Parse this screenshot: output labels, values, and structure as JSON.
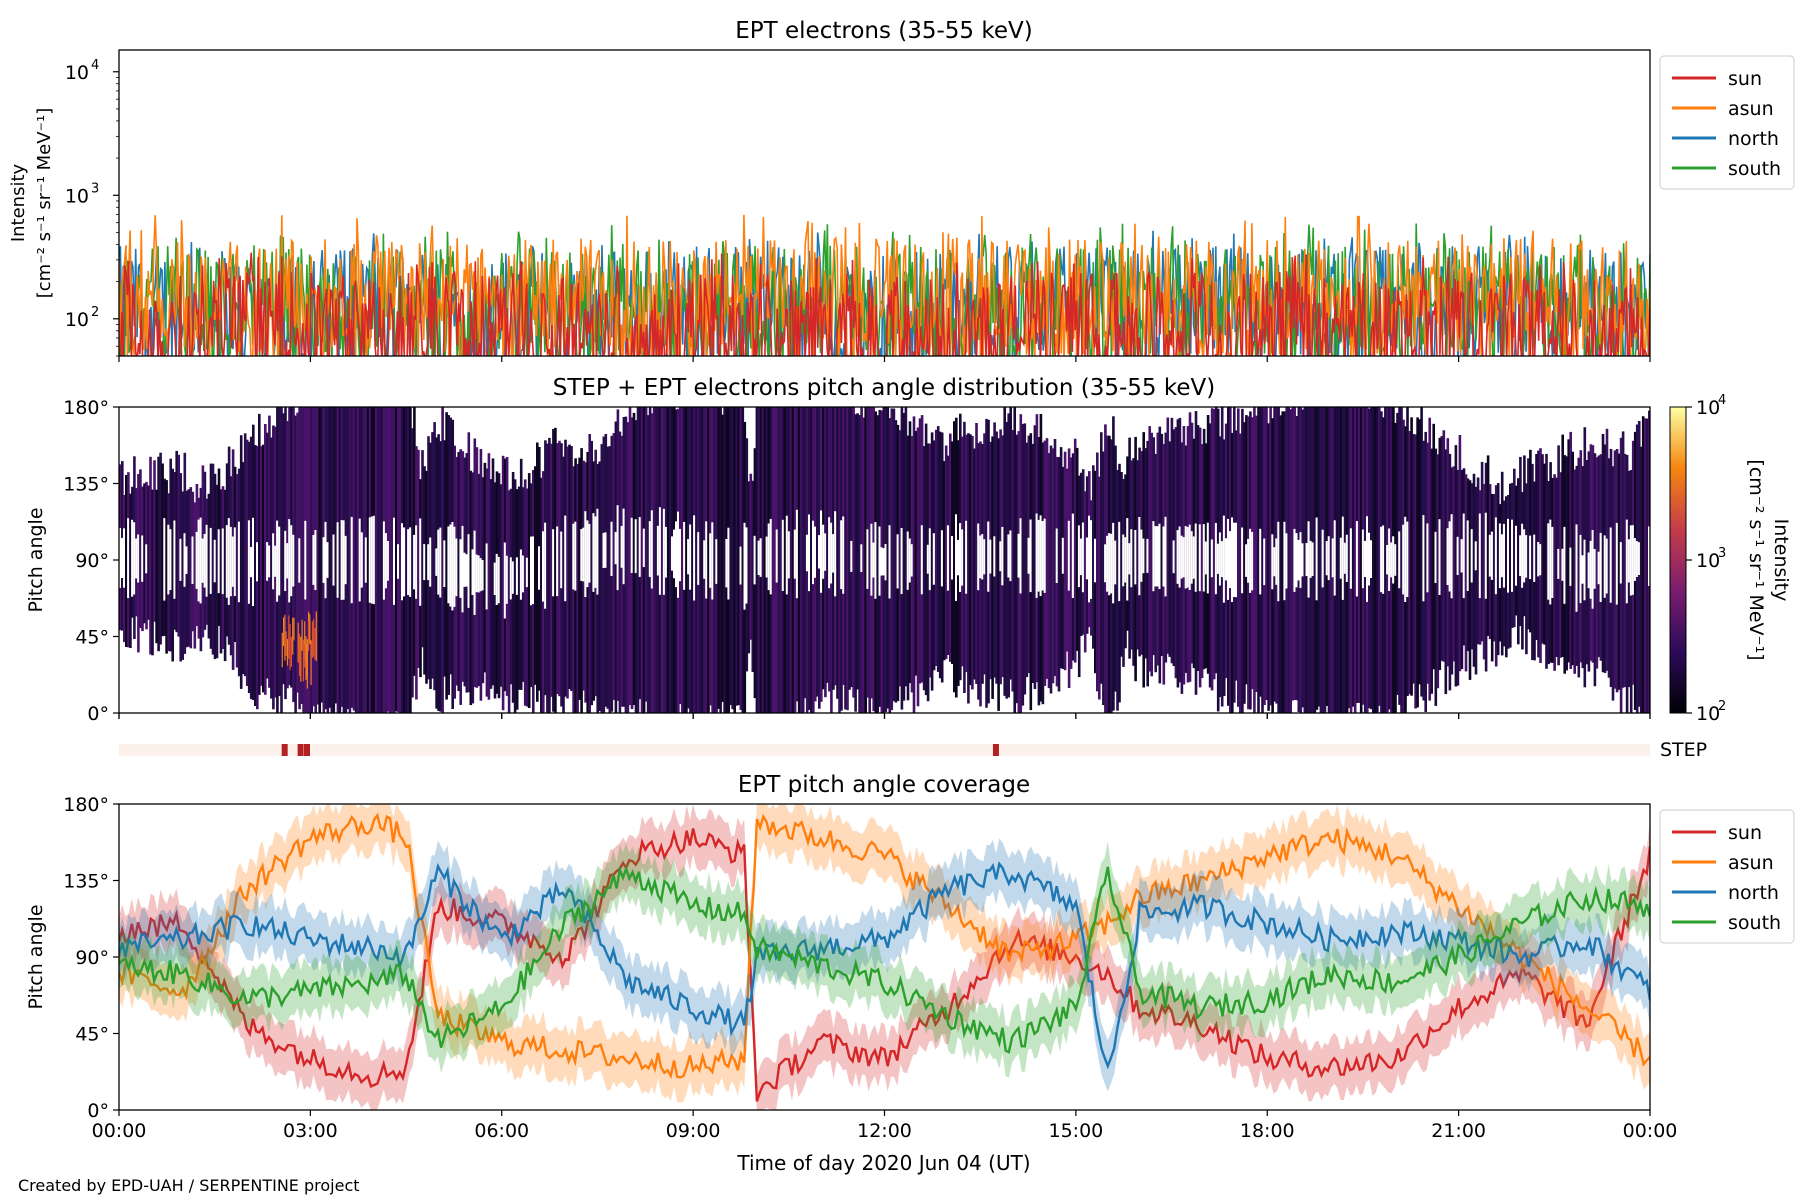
{
  "footer": "Created by EPD-UAH / SERPENTINE project",
  "xlabel": "Time of day 2020 Jun 04 (UT)",
  "time_ticks": [
    "00:00",
    "03:00",
    "06:00",
    "09:00",
    "12:00",
    "15:00",
    "18:00",
    "21:00",
    "00:00"
  ],
  "colors": {
    "sun": "#d62728",
    "asun": "#ff7f0e",
    "north": "#1f77b4",
    "south": "#2ca02c",
    "step_bar": "#b22222",
    "step_bg": "#fdf1ec"
  },
  "chart_data": [
    {
      "type": "line",
      "title": "EPT electrons (35-55 keV)",
      "ylabel": "Intensity",
      "ylabel_units": "[cm⁻² s⁻¹ sr⁻¹ MeV⁻¹]",
      "yscale": "log",
      "ylim": [
        50,
        15000
      ],
      "y_ticks": [
        {
          "value": 100,
          "base": "10",
          "exp": "2"
        },
        {
          "value": 1000,
          "base": "10",
          "exp": "3"
        },
        {
          "value": 10000,
          "base": "10",
          "exp": "4"
        }
      ],
      "xlim_hours": [
        0,
        24
      ],
      "legend": [
        "sun",
        "asun",
        "north",
        "south"
      ],
      "legend_loc": "outside upper right",
      "series": [
        {
          "name": "sun",
          "color": "#d62728",
          "baseline": 80,
          "spread": 0.28,
          "spike": 350
        },
        {
          "name": "asun",
          "color": "#ff7f0e",
          "baseline": 150,
          "spread": 0.3,
          "spike": 700
        },
        {
          "name": "north",
          "color": "#1f77b4",
          "baseline": 130,
          "spread": 0.3,
          "spike": 520
        },
        {
          "name": "south",
          "color": "#2ca02c",
          "baseline": 130,
          "spread": 0.3,
          "spike": 600
        }
      ]
    },
    {
      "type": "heatmap",
      "title": "STEP + EPT electrons pitch angle distribution (35-55 keV)",
      "ylabel": "Pitch angle",
      "ylim": [
        0,
        180
      ],
      "y_ticks": [
        "0°",
        "45°",
        "90°",
        "135°",
        "180°"
      ],
      "colorbar": {
        "label": "Intensity",
        "units": "[cm⁻² s⁻¹ sr⁻¹ MeV⁻¹]",
        "scale": "log",
        "ticks": [
          {
            "base": "10",
            "exp": "2"
          },
          {
            "base": "10",
            "exp": "3"
          },
          {
            "base": "10",
            "exp": "4"
          }
        ],
        "range": [
          100,
          10000
        ]
      },
      "step_label": "STEP",
      "step_hours": [
        2.55,
        2.8,
        2.9,
        13.7
      ]
    },
    {
      "type": "line",
      "title": "EPT pitch angle coverage",
      "ylabel": "Pitch angle",
      "ylim": [
        0,
        180
      ],
      "y_ticks": [
        "0°",
        "45°",
        "90°",
        "135°",
        "180°"
      ],
      "legend": [
        "sun",
        "asun",
        "north",
        "south"
      ],
      "legend_loc": "outside upper right",
      "x_hours": [
        0,
        1,
        2,
        3,
        4,
        4.5,
        5,
        6,
        7,
        8,
        9,
        9.8,
        10,
        11,
        12,
        13,
        14,
        15,
        15.5,
        16,
        17,
        18,
        19,
        20,
        21,
        22,
        23,
        24
      ],
      "series": [
        {
          "name": "sun",
          "color": "#d62728",
          "values": [
            105,
            110,
            50,
            30,
            20,
            25,
            120,
            110,
            90,
            150,
            160,
            150,
            10,
            40,
            30,
            60,
            100,
            90,
            80,
            60,
            50,
            30,
            25,
            30,
            60,
            80,
            50,
            150
          ]
        },
        {
          "name": "asun",
          "color": "#ff7f0e",
          "values": [
            80,
            70,
            130,
            160,
            170,
            160,
            55,
            40,
            35,
            30,
            25,
            30,
            170,
            160,
            150,
            120,
            90,
            100,
            110,
            125,
            135,
            150,
            160,
            150,
            120,
            90,
            60,
            30
          ]
        },
        {
          "name": "north",
          "color": "#1f77b4",
          "values": [
            95,
            100,
            110,
            100,
            95,
            90,
            140,
            100,
            130,
            75,
            60,
            50,
            90,
            95,
            100,
            130,
            140,
            120,
            20,
            115,
            120,
            110,
            100,
            105,
            100,
            90,
            100,
            70
          ]
        },
        {
          "name": "south",
          "color": "#2ca02c",
          "values": [
            85,
            80,
            65,
            70,
            75,
            80,
            40,
            60,
            110,
            140,
            120,
            115,
            95,
            85,
            75,
            55,
            40,
            60,
            140,
            70,
            60,
            65,
            80,
            75,
            90,
            110,
            125,
            120
          ]
        }
      ]
    }
  ]
}
